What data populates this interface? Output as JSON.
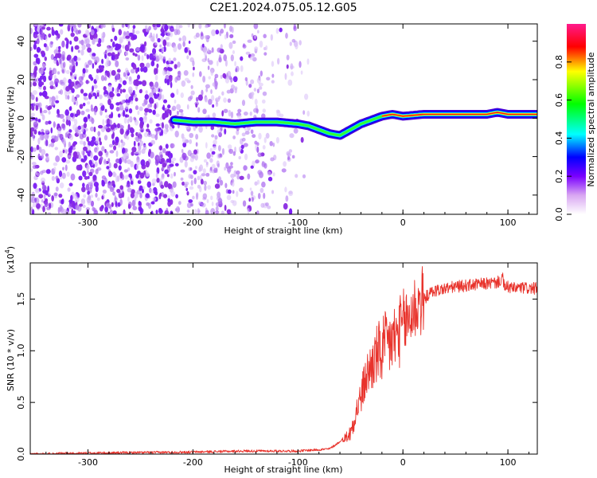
{
  "title": "C2E1.2024.075.05.12.G05",
  "chart_data": [
    {
      "type": "heatmap",
      "xlabel": "Height of straight line (km)",
      "ylabel": "Frequency (Hz)",
      "xlim": [
        -355,
        128
      ],
      "ylim": [
        -50,
        49
      ],
      "xticks": [
        -300,
        -200,
        -100,
        0,
        100
      ],
      "xtick_labels": [
        "-300",
        "-200",
        "-100",
        "0",
        "100"
      ],
      "yticks": [
        -40,
        -20,
        0,
        20,
        40
      ],
      "ytick_labels": [
        "-40",
        "-20",
        "0",
        "20",
        "40"
      ],
      "colorbar": {
        "label": "Normalized spectral amplitude",
        "range": [
          0,
          1
        ],
        "ticks": [
          0.0,
          0.2,
          0.4,
          0.6,
          0.8
        ],
        "tick_labels": [
          "0.0",
          "0.2",
          "0.4",
          "0.6",
          "0.8"
        ]
      },
      "ridge": {
        "x": [
          -218,
          -200,
          -180,
          -160,
          -140,
          -120,
          -100,
          -90,
          -80,
          -70,
          -60,
          -50,
          -40,
          -30,
          -20,
          -10,
          0,
          20,
          40,
          60,
          80,
          90,
          100,
          128
        ],
        "y": [
          -1,
          -2,
          -2,
          -3,
          -2,
          -2,
          -3,
          -4,
          -6,
          -8,
          -9,
          -6,
          -3,
          -1,
          1,
          2,
          1,
          2,
          2,
          2,
          2,
          3,
          2,
          2
        ]
      }
    },
    {
      "type": "line",
      "xlabel": "Height of straight line (km)",
      "ylabel": "SNR (10 * v/v)",
      "scale_label": "(x10",
      "scale_exp": "4",
      "scale_close": ")",
      "xlim": [
        -355,
        128
      ],
      "ylim": [
        0,
        1.85
      ],
      "xticks": [
        -300,
        -200,
        -100,
        0,
        100
      ],
      "xtick_labels": [
        "-300",
        "-200",
        "-100",
        "0",
        "100"
      ],
      "yticks": [
        0.0,
        0.5,
        1.0,
        1.5
      ],
      "ytick_labels": [
        "0.0",
        "0.5",
        "1.0",
        "1.5"
      ],
      "color": "#e8332c",
      "series": {
        "x": [
          -355,
          -300,
          -250,
          -200,
          -150,
          -100,
          -70,
          -60,
          -50,
          -45,
          -40,
          -35,
          -30,
          -25,
          -20,
          -15,
          -10,
          -5,
          0,
          5,
          10,
          15,
          20,
          25,
          30,
          40,
          50,
          60,
          70,
          80,
          90,
          95,
          97,
          100,
          105,
          110,
          128
        ],
        "y": [
          0.0,
          0.01,
          0.015,
          0.02,
          0.03,
          0.03,
          0.05,
          0.12,
          0.2,
          0.4,
          0.55,
          0.75,
          0.85,
          0.95,
          1.0,
          1.05,
          1.1,
          1.15,
          1.25,
          1.3,
          1.4,
          1.45,
          1.5,
          1.55,
          1.58,
          1.6,
          1.62,
          1.63,
          1.64,
          1.65,
          1.66,
          1.7,
          1.6,
          1.62,
          1.6,
          1.61,
          1.6
        ]
      }
    }
  ]
}
